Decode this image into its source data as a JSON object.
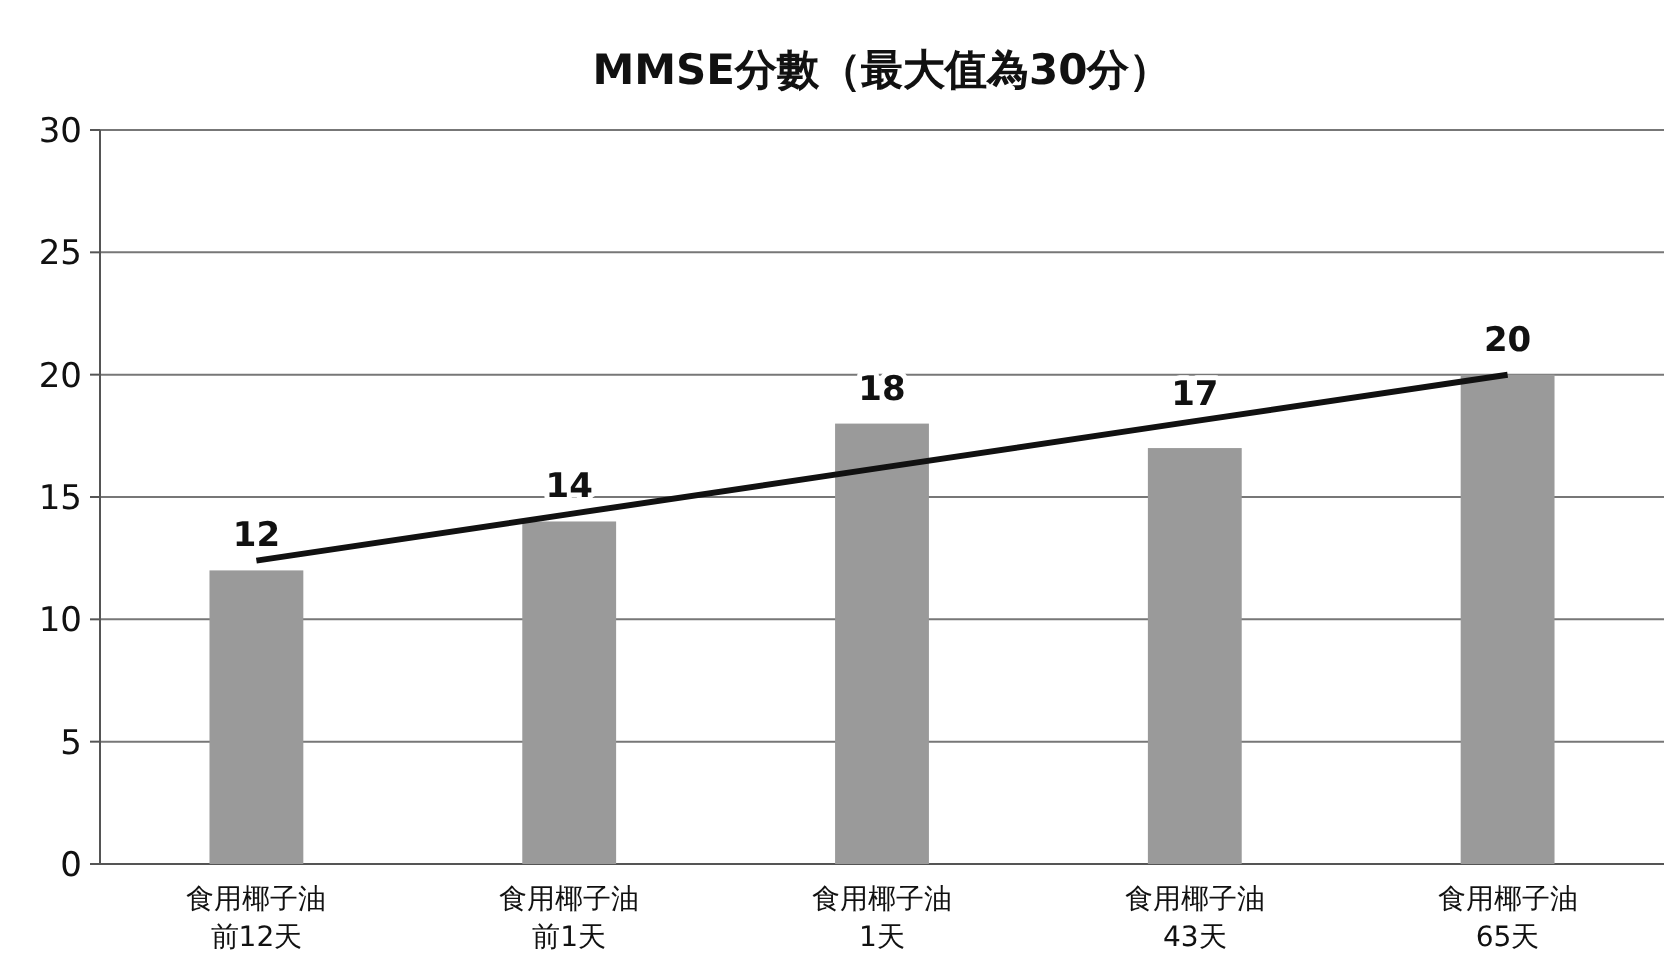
{
  "chart_data": {
    "type": "bar",
    "title": "MMSE分數（最大值為30分）",
    "categories": [
      "食用椰子油前12天",
      "食用椰子油前1天",
      "食用椰子油1天",
      "食用椰子油43天",
      "食用椰子油65天"
    ],
    "series": [
      {
        "color": "#9a9a9a",
        "values": [
          12,
          14,
          18,
          17,
          20
        ],
        "value_labels": [
          "12",
          "14",
          "18",
          "17",
          "20"
        ]
      },
      {
        "type": "line",
        "color": "#111111",
        "values": [
          12.4,
          14.3,
          16.2,
          18.1,
          20.0
        ]
      }
    ],
    "ylim": [
      0,
      30
    ],
    "yticks": [
      0,
      5,
      10,
      15,
      20,
      25,
      30
    ],
    "grid": "y",
    "marker": "none",
    "line_style": "solid"
  }
}
